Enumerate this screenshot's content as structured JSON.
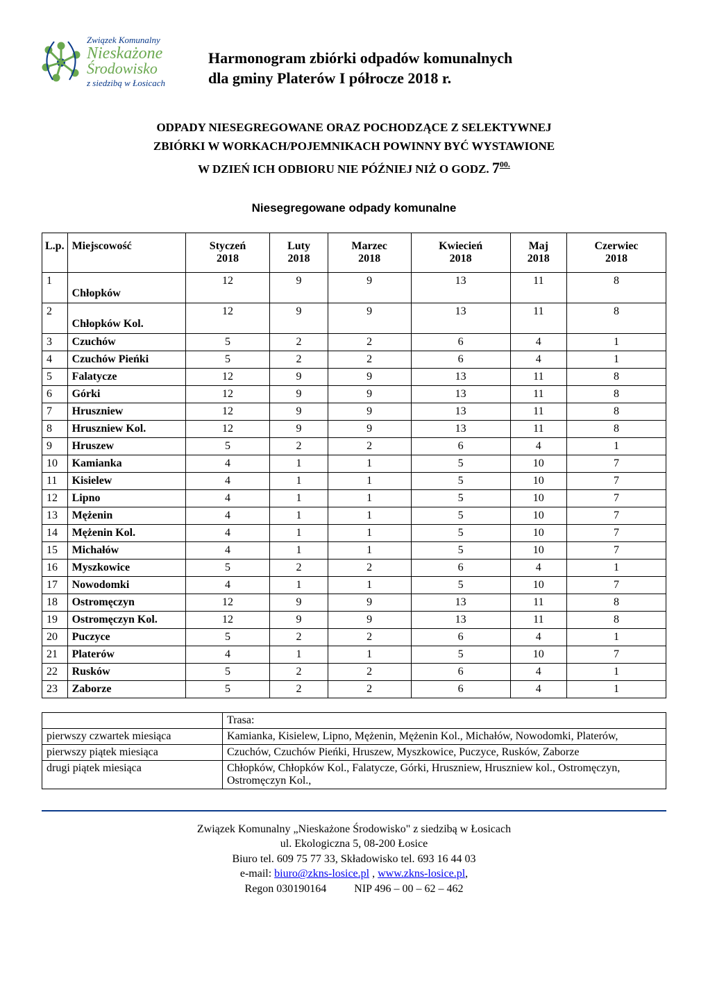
{
  "logo": {
    "line1": "Związek Komunalny",
    "line2": "Nieskażone",
    "line3": "Środowisko",
    "line4": "z siedzibą w Łosicach",
    "text_color": "#0a3a8a",
    "accent_color": "#6aa84f"
  },
  "header": {
    "title_l1": "Harmonogram zbiórki odpadów komunalnych",
    "title_l2": "dla gminy Platerów I półrocze 2018 r."
  },
  "notice": {
    "l1": "ODPADY   NIESEGREGOWANE  ORAZ POCHODZĄCE    Z SELEKTYWNEJ",
    "l2": "ZBIÓRKI  W  WORKACH/POJEMNIKACH  POWINNY BYĆ  WYSTAWIONE",
    "l3_pre": "W DZIEŃ ICH ODBIORU NIE PÓŹNIEJ NIŻ O GODZ. ",
    "hour": "7",
    "hour_sup": "00."
  },
  "section_title": "Niesegregowane odpady komunalne",
  "table": {
    "columns": [
      "L.p.",
      "Miejscowość",
      "Styczeń 2018",
      "Luty 2018",
      "Marzec 2018",
      "Kwiecień 2018",
      "Maj 2018",
      "Czerwiec 2018"
    ],
    "col_l1": [
      "L.p.",
      "Miejscowość",
      "Styczeń",
      "Luty",
      "Marzec",
      "Kwiecień",
      "Maj",
      "Czerwiec"
    ],
    "col_l2": [
      "",
      "",
      "2018",
      "2018",
      "2018",
      "2018",
      "2018",
      "2018"
    ],
    "rows": [
      {
        "lp": "1",
        "loc": "Chłopków",
        "v": [
          "12",
          "9",
          "9",
          "13",
          "11",
          "8"
        ],
        "tall": true
      },
      {
        "lp": "2",
        "loc": "Chłopków Kol.",
        "v": [
          "12",
          "9",
          "9",
          "13",
          "11",
          "8"
        ],
        "tall": true
      },
      {
        "lp": "3",
        "loc": "Czuchów",
        "v": [
          "5",
          "2",
          "2",
          "6",
          "4",
          "1"
        ]
      },
      {
        "lp": "4",
        "loc": "Czuchów Pieńki",
        "v": [
          "5",
          "2",
          "2",
          "6",
          "4",
          "1"
        ]
      },
      {
        "lp": "5",
        "loc": "Falatycze",
        "v": [
          "12",
          "9",
          "9",
          "13",
          "11",
          "8"
        ]
      },
      {
        "lp": "6",
        "loc": "Górki",
        "v": [
          "12",
          "9",
          "9",
          "13",
          "11",
          "8"
        ]
      },
      {
        "lp": "7",
        "loc": "Hruszniew",
        "v": [
          "12",
          "9",
          "9",
          "13",
          "11",
          "8"
        ]
      },
      {
        "lp": "8",
        "loc": "Hruszniew Kol.",
        "v": [
          "12",
          "9",
          "9",
          "13",
          "11",
          "8"
        ]
      },
      {
        "lp": "9",
        "loc": "Hruszew",
        "v": [
          "5",
          "2",
          "2",
          "6",
          "4",
          "1"
        ]
      },
      {
        "lp": "10",
        "loc": "Kamianka",
        "v": [
          "4",
          "1",
          "1",
          "5",
          "10",
          "7"
        ]
      },
      {
        "lp": "11",
        "loc": "Kisielew",
        "v": [
          "4",
          "1",
          "1",
          "5",
          "10",
          "7"
        ]
      },
      {
        "lp": "12",
        "loc": "Lipno",
        "v": [
          "4",
          "1",
          "1",
          "5",
          "10",
          "7"
        ]
      },
      {
        "lp": "13",
        "loc": "Mężenin",
        "v": [
          "4",
          "1",
          "1",
          "5",
          "10",
          "7"
        ]
      },
      {
        "lp": "14",
        "loc": "Mężenin Kol.",
        "v": [
          "4",
          "1",
          "1",
          "5",
          "10",
          "7"
        ]
      },
      {
        "lp": "15",
        "loc": "Michałów",
        "v": [
          "4",
          "1",
          "1",
          "5",
          "10",
          "7"
        ]
      },
      {
        "lp": "16",
        "loc": "Myszkowice",
        "v": [
          "5",
          "2",
          "2",
          "6",
          "4",
          "1"
        ]
      },
      {
        "lp": "17",
        "loc": "Nowodomki",
        "v": [
          "4",
          "1",
          "1",
          "5",
          "10",
          "7"
        ]
      },
      {
        "lp": "18",
        "loc": "Ostromęczyn",
        "v": [
          "12",
          "9",
          "9",
          "13",
          "11",
          "8"
        ]
      },
      {
        "lp": "19",
        "loc": "Ostromęczyn Kol.",
        "v": [
          "12",
          "9",
          "9",
          "13",
          "11",
          "8"
        ]
      },
      {
        "lp": "20",
        "loc": "Puczyce",
        "v": [
          "5",
          "2",
          "2",
          "6",
          "4",
          "1"
        ]
      },
      {
        "lp": "21",
        "loc": "Platerów",
        "v": [
          "4",
          "1",
          "1",
          "5",
          "10",
          "7"
        ]
      },
      {
        "lp": "22",
        "loc": "Rusków",
        "v": [
          "5",
          "2",
          "2",
          "6",
          "4",
          "1"
        ]
      },
      {
        "lp": "23",
        "loc": "Zaborze",
        "v": [
          "5",
          "2",
          "2",
          "6",
          "4",
          "1"
        ]
      }
    ]
  },
  "routes": {
    "header": "Trasa:",
    "rows": [
      {
        "day": "pierwszy czwartek miesiąca",
        "route": "Kamianka, Kisielew, Lipno, Mężenin, Mężenin Kol., Michałów, Nowodomki, Platerów,"
      },
      {
        "day": "pierwszy piątek miesiąca",
        "route": "Czuchów, Czuchów Pieńki, Hruszew, Myszkowice, Puczyce, Rusków, Zaborze"
      },
      {
        "day": "drugi piątek miesiąca",
        "route": "Chłopków, Chłopków Kol., Falatycze, Górki, Hruszniew, Hruszniew kol., Ostromęczyn, Ostromęczyn Kol.,"
      }
    ]
  },
  "footer": {
    "l1": "Związek Komunalny „Nieskażone Środowisko\" z siedzibą w Łosicach",
    "l2": "ul. Ekologiczna 5, 08-200 Łosice",
    "l3": "Biuro tel. 609 75 77 33,  Składowisko tel. 693 16 44 03",
    "l4_pre": "e-mail: ",
    "l4_mail": "biuro@zkns-losice.pl",
    "l4_mid": " ,   ",
    "l4_web": "www.zkns-losice.pl",
    "l4_post": ",",
    "l5": "Regon 030190164          NIP 496 – 00 – 62 – 462"
  }
}
